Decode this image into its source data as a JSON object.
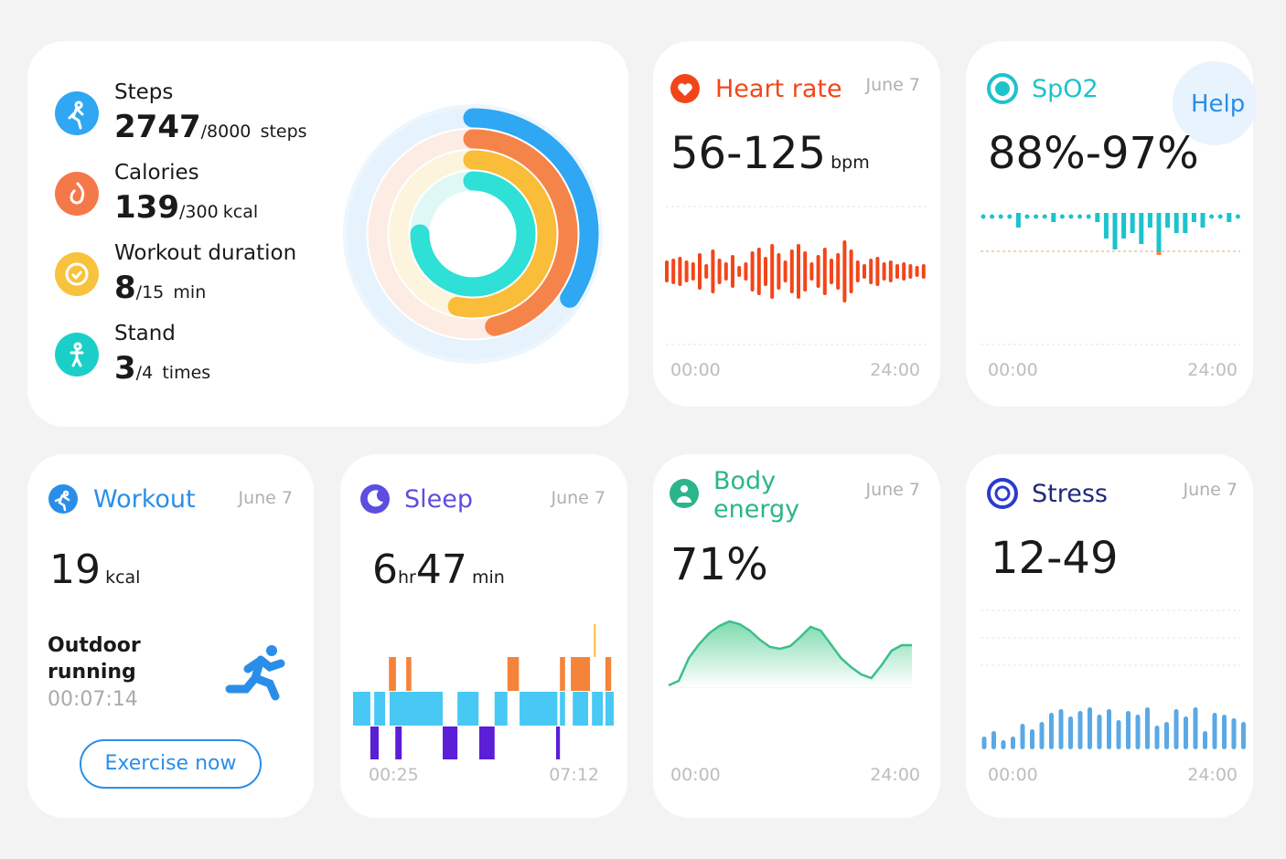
{
  "activity": {
    "items": [
      {
        "label": "Steps",
        "value": 2747,
        "goal": {
          "value": 8000,
          "label": "/8000"
        },
        "unit": "steps",
        "color": "#2fa7f2",
        "track": "#e6f2fc"
      },
      {
        "label": "Calories",
        "value": 139,
        "goal": {
          "value": 300,
          "label": "/300"
        },
        "unit": "kcal",
        "color": "#f5844a",
        "track": "#fdece4"
      },
      {
        "label": "Workout duration",
        "value": 8,
        "goal": {
          "value": 15,
          "label": "/15"
        },
        "unit": "min",
        "color": "#f9bd3a",
        "track": "#fdf4de"
      },
      {
        "label": "Stand",
        "value": 3,
        "goal": {
          "value": 4,
          "label": "/4"
        },
        "unit": "times",
        "color": "#2ee0d6",
        "track": "#dff8f6"
      }
    ]
  },
  "heart_rate": {
    "title": "Heart rate",
    "date": "June 7",
    "range": "56-125",
    "unit": "bpm",
    "axis": [
      "00:00",
      "24:00"
    ],
    "color": "#f2461a",
    "bars": [
      12,
      14,
      16,
      12,
      10,
      20,
      8,
      24,
      14,
      10,
      18,
      6,
      10,
      22,
      26,
      16,
      30,
      20,
      12,
      24,
      30,
      22,
      10,
      18,
      26,
      14,
      20,
      34,
      24,
      12,
      8,
      14,
      16,
      10,
      12,
      8,
      10,
      8,
      6,
      8
    ]
  },
  "spo2": {
    "title": "SpO2",
    "range": "88%-97%",
    "axis": [
      "00:00",
      "24:00"
    ],
    "help": "Help",
    "color": "#1cc3cc",
    "low_color": "#f5843a",
    "levels": [
      97,
      97,
      97,
      97,
      95,
      97,
      97,
      97,
      96,
      97,
      97,
      97,
      97,
      96,
      93,
      91,
      93,
      94,
      92,
      95,
      90,
      95,
      94,
      94,
      96,
      95,
      97,
      97,
      96,
      97
    ]
  },
  "workout": {
    "title": "Workout",
    "date": "June 7",
    "value": 19,
    "unit": "kcal",
    "activity": "Outdoor running",
    "duration": "00:07:14",
    "button": "Exercise now"
  },
  "sleep": {
    "title": "Sleep",
    "date": "June 7",
    "hours": 6,
    "hours_unit": "hr",
    "minutes": 47,
    "minutes_unit": "min",
    "axis": [
      "00:25",
      "07:12"
    ],
    "colors": [
      "#5a1fd6",
      "#48c8f5",
      "#f5843a",
      "#f9bd3a"
    ],
    "segments": [
      [
        1,
        0,
        27
      ],
      [
        0,
        27,
        40
      ],
      [
        1,
        33,
        50
      ],
      [
        2,
        56,
        67
      ],
      [
        0,
        66,
        76
      ],
      [
        1,
        57,
        140
      ],
      [
        2,
        83,
        91
      ],
      [
        0,
        140,
        163
      ],
      [
        1,
        163,
        196
      ],
      [
        0,
        197,
        221
      ],
      [
        1,
        221,
        241
      ],
      [
        2,
        241,
        259
      ],
      [
        1,
        260,
        319
      ],
      [
        0,
        317,
        323
      ],
      [
        1,
        323,
        331
      ],
      [
        2,
        323,
        331
      ],
      [
        2,
        340,
        370
      ],
      [
        1,
        343,
        367
      ],
      [
        1,
        373,
        390
      ],
      [
        3,
        376,
        377
      ],
      [
        2,
        394,
        403
      ],
      [
        1,
        394,
        407
      ]
    ]
  },
  "body_energy": {
    "title": "Body energy",
    "date": "June 7",
    "value": {
      "value": 71,
      "label": "71%"
    },
    "axis": [
      "00:00",
      "24:00"
    ],
    "color": "#3cbf8b",
    "values": [
      10,
      15,
      40,
      55,
      67,
      75,
      80,
      77,
      70,
      60,
      52,
      50,
      53,
      63,
      74,
      70,
      55,
      40,
      30,
      22,
      18,
      32,
      48,
      54,
      54
    ]
  },
  "stress": {
    "title": "Stress",
    "date": "June 7",
    "range": "12-49",
    "axis": [
      "00:00",
      "24:00"
    ],
    "color": "#5aa9e6",
    "values": [
      14,
      20,
      10,
      14,
      28,
      22,
      30,
      40,
      44,
      36,
      42,
      46,
      38,
      44,
      32,
      42,
      38,
      46,
      26,
      30,
      44,
      36,
      46,
      20,
      40,
      38,
      34,
      30
    ]
  }
}
